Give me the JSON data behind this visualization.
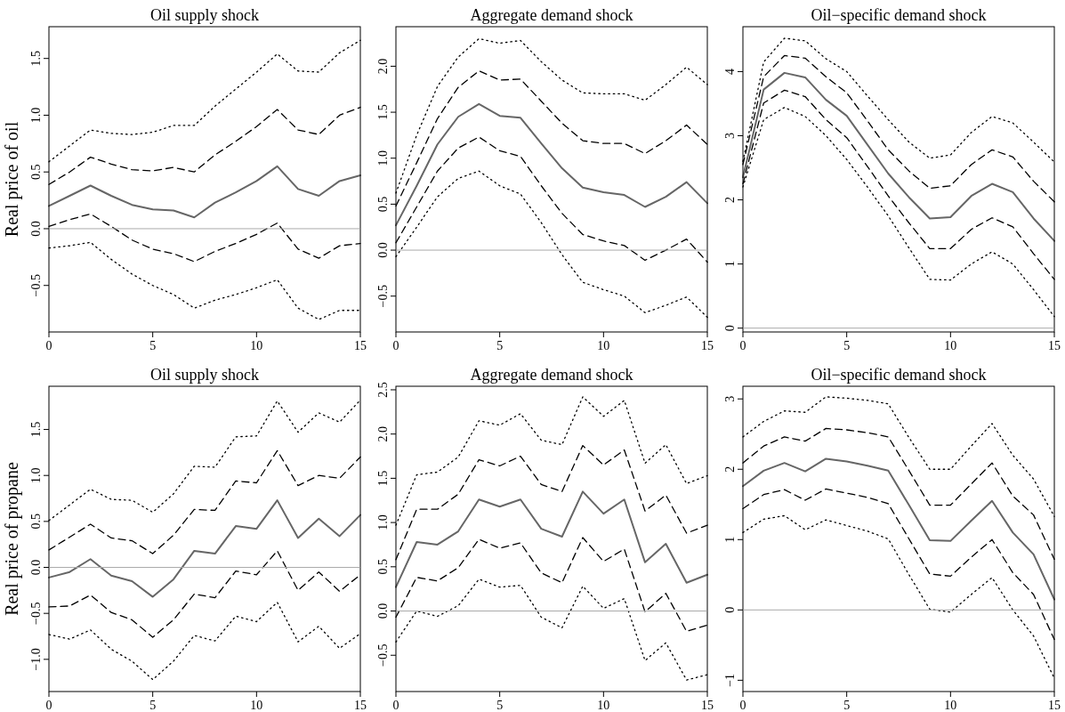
{
  "chart_data": [
    {
      "type": "line",
      "title": "Oil supply shock",
      "ylabel": "Real price of oil",
      "x": [
        0,
        1,
        2,
        3,
        4,
        5,
        6,
        7,
        8,
        9,
        10,
        11,
        12,
        13,
        14,
        15
      ],
      "xlim": [
        0,
        15
      ],
      "xticks": [
        0,
        5,
        10,
        15
      ],
      "ylim": [
        -0.91,
        1.78
      ],
      "yticks": [
        -0.5,
        {
          "value": 0,
          "label": "0.0"
        },
        0.5,
        {
          "value": 1,
          "label": "1.0"
        },
        1.5
      ],
      "ref_lines": [
        {
          "axis": "y",
          "value": 0,
          "color": "#aaaaaa"
        }
      ],
      "series": [
        {
          "color": "#000000",
          "line_style": "dotted",
          "values": [
            0.59,
            0.73,
            0.87,
            0.84,
            0.83,
            0.85,
            0.91,
            0.91,
            1.08,
            1.23,
            1.38,
            1.54,
            1.39,
            1.38,
            1.55,
            1.66
          ]
        },
        {
          "color": "#000000",
          "line_style": "dashed",
          "values": [
            0.39,
            0.5,
            0.63,
            0.57,
            0.52,
            0.51,
            0.54,
            0.5,
            0.65,
            0.77,
            0.9,
            1.05,
            0.87,
            0.83,
            1.0,
            1.07
          ]
        },
        {
          "color": "#666666",
          "line_style": "solid",
          "values": [
            0.2,
            0.29,
            0.38,
            0.29,
            0.21,
            0.17,
            0.16,
            0.1,
            0.23,
            0.32,
            0.42,
            0.55,
            0.35,
            0.29,
            0.42,
            0.47
          ]
        },
        {
          "color": "#000000",
          "line_style": "dashed",
          "values": [
            0.02,
            0.08,
            0.13,
            0.02,
            -0.1,
            -0.18,
            -0.22,
            -0.29,
            -0.2,
            -0.13,
            -0.05,
            0.05,
            -0.18,
            -0.26,
            -0.15,
            -0.13
          ]
        },
        {
          "color": "#000000",
          "line_style": "dotted",
          "values": [
            -0.17,
            -0.15,
            -0.12,
            -0.27,
            -0.4,
            -0.5,
            -0.58,
            -0.7,
            -0.63,
            -0.58,
            -0.52,
            -0.45,
            -0.7,
            -0.8,
            -0.72,
            -0.72
          ]
        }
      ]
    },
    {
      "type": "line",
      "title": "Aggregate demand shock",
      "x": [
        0,
        1,
        2,
        3,
        4,
        5,
        6,
        7,
        8,
        9,
        10,
        11,
        12,
        13,
        14,
        15
      ],
      "xlim": [
        0,
        15
      ],
      "xticks": [
        0,
        5,
        10,
        15
      ],
      "ylim": [
        -0.89,
        2.43
      ],
      "yticks": [
        -0.5,
        {
          "value": 0,
          "label": "0.0"
        },
        0.5,
        {
          "value": 1,
          "label": "1.0"
        },
        1.5,
        {
          "value": 2,
          "label": "2.0"
        }
      ],
      "ref_lines": [
        {
          "axis": "y",
          "value": 0,
          "color": "#aaaaaa"
        }
      ],
      "series": [
        {
          "color": "#000000",
          "line_style": "dotted",
          "values": [
            0.62,
            1.25,
            1.78,
            2.1,
            2.3,
            2.25,
            2.28,
            2.05,
            1.85,
            1.71,
            1.7,
            1.7,
            1.63,
            1.8,
            1.99,
            1.8
          ]
        },
        {
          "color": "#000000",
          "line_style": "dashed",
          "values": [
            0.48,
            0.95,
            1.43,
            1.77,
            1.95,
            1.85,
            1.86,
            1.62,
            1.38,
            1.19,
            1.16,
            1.16,
            1.05,
            1.19,
            1.36,
            1.15
          ]
        },
        {
          "color": "#666666",
          "line_style": "solid",
          "values": [
            0.27,
            0.7,
            1.15,
            1.45,
            1.59,
            1.46,
            1.44,
            1.16,
            0.89,
            0.68,
            0.63,
            0.6,
            0.47,
            0.58,
            0.74,
            0.51
          ]
        },
        {
          "color": "#000000",
          "line_style": "dashed",
          "values": [
            0.08,
            0.47,
            0.86,
            1.11,
            1.23,
            1.08,
            1.02,
            0.7,
            0.4,
            0.17,
            0.1,
            0.05,
            -0.11,
            0.0,
            0.12,
            -0.13
          ]
        },
        {
          "color": "#000000",
          "line_style": "dotted",
          "values": [
            -0.07,
            0.25,
            0.58,
            0.78,
            0.86,
            0.7,
            0.61,
            0.3,
            -0.05,
            -0.35,
            -0.43,
            -0.5,
            -0.68,
            -0.6,
            -0.51,
            -0.73
          ]
        }
      ]
    },
    {
      "type": "line",
      "title": "Oil−specific demand shock",
      "x": [
        0,
        1,
        2,
        3,
        4,
        5,
        6,
        7,
        8,
        9,
        10,
        11,
        12,
        13,
        14,
        15
      ],
      "xlim": [
        0,
        15
      ],
      "xticks": [
        0,
        5,
        10,
        15
      ],
      "ylim": [
        -0.06,
        4.7
      ],
      "yticks": [
        0,
        1,
        2,
        3,
        4
      ],
      "ref_lines": [
        {
          "axis": "y",
          "value": 0,
          "color": "#aaaaaa"
        }
      ],
      "series": [
        {
          "color": "#000000",
          "line_style": "dotted",
          "values": [
            2.6,
            4.15,
            4.52,
            4.48,
            4.2,
            4.0,
            3.62,
            3.25,
            2.9,
            2.65,
            2.7,
            3.05,
            3.3,
            3.2,
            2.9,
            2.59
          ]
        },
        {
          "color": "#000000",
          "line_style": "dashed",
          "values": [
            2.55,
            3.92,
            4.25,
            4.21,
            3.92,
            3.67,
            3.23,
            2.78,
            2.45,
            2.18,
            2.22,
            2.55,
            2.78,
            2.67,
            2.29,
            1.97
          ]
        },
        {
          "color": "#666666",
          "line_style": "solid",
          "values": [
            2.35,
            3.72,
            3.98,
            3.91,
            3.56,
            3.31,
            2.86,
            2.41,
            2.04,
            1.71,
            1.73,
            2.06,
            2.25,
            2.12,
            1.71,
            1.36
          ]
        },
        {
          "color": "#000000",
          "line_style": "dashed",
          "values": [
            2.25,
            3.51,
            3.71,
            3.61,
            3.25,
            2.97,
            2.52,
            2.06,
            1.64,
            1.24,
            1.24,
            1.54,
            1.72,
            1.58,
            1.16,
            0.76
          ]
        },
        {
          "color": "#000000",
          "line_style": "dotted",
          "values": [
            2.2,
            3.25,
            3.44,
            3.3,
            3.0,
            2.63,
            2.2,
            1.75,
            1.25,
            0.76,
            0.75,
            1.0,
            1.19,
            1.0,
            0.6,
            0.18
          ]
        }
      ]
    },
    {
      "type": "line",
      "title": "Oil supply shock",
      "ylabel": "Real price of propane",
      "x": [
        0,
        1,
        2,
        3,
        4,
        5,
        6,
        7,
        8,
        9,
        10,
        11,
        12,
        13,
        14,
        15
      ],
      "xlim": [
        0,
        15
      ],
      "xticks": [
        0,
        5,
        10,
        15
      ],
      "ylim": [
        -1.35,
        1.97
      ],
      "yticks": [
        {
          "value": -1,
          "label": "−1.0"
        },
        -0.5,
        {
          "value": 0,
          "label": "0.0"
        },
        0.5,
        {
          "value": 1,
          "label": "1.0"
        },
        1.5
      ],
      "ref_lines": [
        {
          "axis": "y",
          "value": 0,
          "color": "#aaaaaa"
        }
      ],
      "series": [
        {
          "color": "#000000",
          "line_style": "dotted",
          "values": [
            0.51,
            0.68,
            0.85,
            0.74,
            0.73,
            0.6,
            0.8,
            1.1,
            1.09,
            1.42,
            1.43,
            1.81,
            1.47,
            1.68,
            1.58,
            1.82
          ]
        },
        {
          "color": "#000000",
          "line_style": "dashed",
          "values": [
            0.19,
            0.33,
            0.47,
            0.32,
            0.29,
            0.15,
            0.35,
            0.63,
            0.62,
            0.94,
            0.92,
            1.27,
            0.89,
            1.0,
            0.97,
            1.2
          ]
        },
        {
          "color": "#666666",
          "line_style": "solid",
          "values": [
            -0.11,
            -0.05,
            0.09,
            -0.09,
            -0.15,
            -0.32,
            -0.13,
            0.18,
            0.15,
            0.45,
            0.42,
            0.73,
            0.32,
            0.53,
            0.34,
            0.57
          ]
        },
        {
          "color": "#000000",
          "line_style": "dashed",
          "values": [
            -0.43,
            -0.42,
            -0.3,
            -0.49,
            -0.57,
            -0.76,
            -0.57,
            -0.29,
            -0.33,
            -0.04,
            -0.08,
            0.18,
            -0.25,
            -0.05,
            -0.26,
            -0.08
          ]
        },
        {
          "color": "#000000",
          "line_style": "dotted",
          "values": [
            -0.73,
            -0.78,
            -0.68,
            -0.89,
            -1.02,
            -1.22,
            -1.02,
            -0.74,
            -0.8,
            -0.53,
            -0.59,
            -0.38,
            -0.81,
            -0.64,
            -0.88,
            -0.72
          ]
        }
      ]
    },
    {
      "type": "line",
      "title": "Aggregate demand shock",
      "x": [
        0,
        1,
        2,
        3,
        4,
        5,
        6,
        7,
        8,
        9,
        10,
        11,
        12,
        13,
        14,
        15
      ],
      "xlim": [
        0,
        15
      ],
      "xticks": [
        0,
        5,
        10,
        15
      ],
      "ylim": [
        -0.91,
        2.54
      ],
      "yticks": [
        -0.5,
        {
          "value": 0,
          "label": "0.0"
        },
        0.5,
        {
          "value": 1,
          "label": "1.0"
        },
        1.5,
        {
          "value": 2,
          "label": "2.0"
        },
        2.5
      ],
      "ref_lines": [
        {
          "axis": "y",
          "value": 0,
          "color": "#aaaaaa"
        }
      ],
      "series": [
        {
          "color": "#000000",
          "line_style": "dotted",
          "values": [
            0.97,
            1.54,
            1.57,
            1.74,
            2.15,
            2.1,
            2.23,
            1.93,
            1.88,
            2.42,
            2.2,
            2.38,
            1.67,
            1.88,
            1.44,
            1.53
          ]
        },
        {
          "color": "#000000",
          "line_style": "dashed",
          "values": [
            0.58,
            1.15,
            1.15,
            1.32,
            1.71,
            1.64,
            1.75,
            1.43,
            1.35,
            1.87,
            1.65,
            1.82,
            1.13,
            1.31,
            0.88,
            0.97
          ]
        },
        {
          "color": "#666666",
          "line_style": "solid",
          "values": [
            0.27,
            0.78,
            0.75,
            0.9,
            1.26,
            1.18,
            1.26,
            0.93,
            0.84,
            1.35,
            1.1,
            1.26,
            0.55,
            0.76,
            0.32,
            0.41
          ]
        },
        {
          "color": "#000000",
          "line_style": "dashed",
          "values": [
            -0.07,
            0.38,
            0.34,
            0.49,
            0.81,
            0.71,
            0.77,
            0.43,
            0.32,
            0.83,
            0.56,
            0.7,
            -0.01,
            0.2,
            -0.23,
            -0.16
          ]
        },
        {
          "color": "#000000",
          "line_style": "dotted",
          "values": [
            -0.35,
            0.0,
            -0.06,
            0.06,
            0.36,
            0.27,
            0.29,
            -0.07,
            -0.19,
            0.28,
            0.03,
            0.14,
            -0.56,
            -0.36,
            -0.78,
            -0.72
          ]
        }
      ]
    },
    {
      "type": "line",
      "title": "Oil−specific demand shock",
      "x": [
        0,
        1,
        2,
        3,
        4,
        5,
        6,
        7,
        8,
        9,
        10,
        11,
        12,
        13,
        14,
        15
      ],
      "xlim": [
        0,
        15
      ],
      "xticks": [
        0,
        5,
        10,
        15
      ],
      "ylim": [
        -1.16,
        3.18
      ],
      "yticks": [
        {
          "value": -1,
          "label": "−1"
        },
        0,
        1,
        2,
        3
      ],
      "ref_lines": [
        {
          "axis": "y",
          "value": 0,
          "color": "#aaaaaa"
        }
      ],
      "series": [
        {
          "color": "#000000",
          "line_style": "dotted",
          "values": [
            2.46,
            2.68,
            2.83,
            2.81,
            3.03,
            3.01,
            2.98,
            2.93,
            2.45,
            2.0,
            2.0,
            2.33,
            2.65,
            2.2,
            1.86,
            1.33
          ]
        },
        {
          "color": "#000000",
          "line_style": "dashed",
          "values": [
            2.09,
            2.33,
            2.46,
            2.4,
            2.58,
            2.56,
            2.52,
            2.46,
            1.98,
            1.49,
            1.49,
            1.79,
            2.09,
            1.62,
            1.35,
            0.72
          ]
        },
        {
          "color": "#666666",
          "line_style": "solid",
          "values": [
            1.76,
            1.98,
            2.09,
            1.97,
            2.15,
            2.11,
            2.05,
            1.98,
            1.49,
            0.99,
            0.98,
            1.27,
            1.55,
            1.1,
            0.79,
            0.15
          ]
        },
        {
          "color": "#000000",
          "line_style": "dashed",
          "values": [
            1.44,
            1.64,
            1.71,
            1.56,
            1.72,
            1.66,
            1.6,
            1.51,
            1.01,
            0.51,
            0.48,
            0.75,
            1.0,
            0.53,
            0.22,
            -0.42
          ]
        },
        {
          "color": "#000000",
          "line_style": "dotted",
          "values": [
            1.1,
            1.29,
            1.34,
            1.14,
            1.28,
            1.2,
            1.12,
            1.01,
            0.5,
            0.01,
            -0.03,
            0.22,
            0.46,
            0.0,
            -0.37,
            -0.97
          ]
        }
      ]
    }
  ]
}
